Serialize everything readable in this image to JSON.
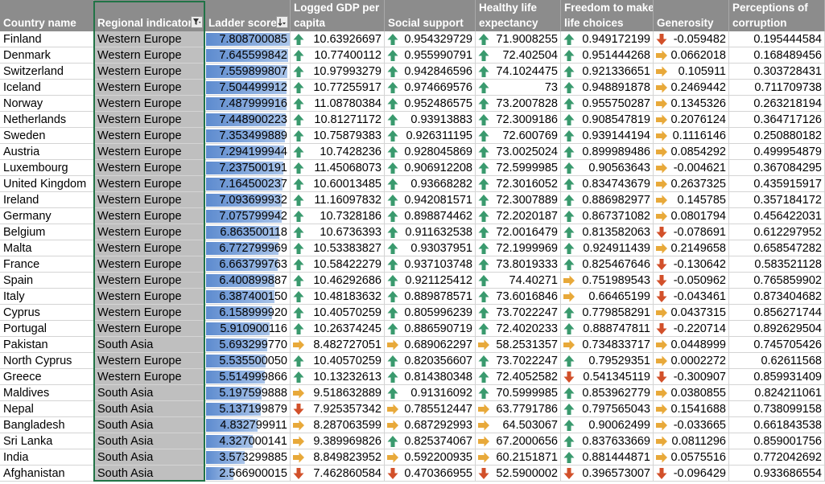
{
  "headers": {
    "country": "Country name",
    "region": "Regional indicator",
    "ladder": "Ladder score",
    "gdp": [
      "Logged GDP per",
      "capita"
    ],
    "social": "Social support",
    "life": [
      "Healthy life",
      "expectancy"
    ],
    "freedom": [
      "Freedom to make",
      "life choices"
    ],
    "generosity": "Generosity",
    "corruption": [
      "Perceptions of",
      "corruption"
    ]
  },
  "colors": {
    "header_bg": "#8c8c8c",
    "region_fill": "#bfbfbf",
    "databar": "#5d8bcf",
    "arrow_up": "#3a9a6e",
    "arrow_side": "#e8a93a",
    "arrow_down": "#d2502a",
    "selection": "#217346"
  },
  "icons": {
    "filter_active": "filter-icon",
    "sort_desc": "sort-descending-icon",
    "up": "arrow-up-icon",
    "side": "arrow-right-icon",
    "down": "arrow-down-icon"
  },
  "ladder_max": 7.8087,
  "rows": [
    {
      "country": "Finland",
      "region": "Western Europe",
      "ladder": "7.808700085",
      "gdp": "10.63926697",
      "gdp_i": "up",
      "social": "0.954329729",
      "social_i": "up",
      "life": "71.9008255",
      "life_i": "up",
      "freedom": "0.949172199",
      "freedom_i": "up",
      "gen": "-0.059482",
      "gen_i": "down",
      "corr": "0.195444584"
    },
    {
      "country": "Denmark",
      "region": "Western Europe",
      "ladder": "7.645599842",
      "gdp": "10.77400112",
      "gdp_i": "up",
      "social": "0.955990791",
      "social_i": "up",
      "life": "72.402504",
      "life_i": "up",
      "freedom": "0.951444268",
      "freedom_i": "up",
      "gen": "0.0662018",
      "gen_i": "side",
      "corr": "0.168489456"
    },
    {
      "country": "Switzerland",
      "region": "Western Europe",
      "ladder": "7.559899807",
      "gdp": "10.97993279",
      "gdp_i": "up",
      "social": "0.942846596",
      "social_i": "up",
      "life": "74.1024475",
      "life_i": "up",
      "freedom": "0.921336651",
      "freedom_i": "up",
      "gen": "0.105911",
      "gen_i": "side",
      "corr": "0.303728431"
    },
    {
      "country": "Iceland",
      "region": "Western Europe",
      "ladder": "7.504499912",
      "gdp": "10.77255917",
      "gdp_i": "up",
      "social": "0.974669576",
      "social_i": "up",
      "life": "73",
      "life_i": "up",
      "freedom": "0.948891878",
      "freedom_i": "up",
      "gen": "0.2469442",
      "gen_i": "side",
      "corr": "0.711709738"
    },
    {
      "country": "Norway",
      "region": "Western Europe",
      "ladder": "7.487999916",
      "gdp": "11.08780384",
      "gdp_i": "up",
      "social": "0.952486575",
      "social_i": "up",
      "life": "73.2007828",
      "life_i": "up",
      "freedom": "0.955750287",
      "freedom_i": "up",
      "gen": "0.1345326",
      "gen_i": "side",
      "corr": "0.263218194"
    },
    {
      "country": "Netherlands",
      "region": "Western Europe",
      "ladder": "7.448900223",
      "gdp": "10.81271172",
      "gdp_i": "up",
      "social": "0.93913883",
      "social_i": "up",
      "life": "72.3009186",
      "life_i": "up",
      "freedom": "0.908547819",
      "freedom_i": "up",
      "gen": "0.2076124",
      "gen_i": "side",
      "corr": "0.364717126"
    },
    {
      "country": "Sweden",
      "region": "Western Europe",
      "ladder": "7.353499889",
      "gdp": "10.75879383",
      "gdp_i": "up",
      "social": "0.926311195",
      "social_i": "up",
      "life": "72.600769",
      "life_i": "up",
      "freedom": "0.939144194",
      "freedom_i": "up",
      "gen": "0.1116146",
      "gen_i": "side",
      "corr": "0.250880182"
    },
    {
      "country": "Austria",
      "region": "Western Europe",
      "ladder": "7.294199944",
      "gdp": "10.7428236",
      "gdp_i": "up",
      "social": "0.928045869",
      "social_i": "up",
      "life": "73.0025024",
      "life_i": "up",
      "freedom": "0.899989486",
      "freedom_i": "up",
      "gen": "0.0854292",
      "gen_i": "side",
      "corr": "0.499954879"
    },
    {
      "country": "Luxembourg",
      "region": "Western Europe",
      "ladder": "7.237500191",
      "gdp": "11.45068073",
      "gdp_i": "up",
      "social": "0.906912208",
      "social_i": "up",
      "life": "72.5999985",
      "life_i": "up",
      "freedom": "0.90563643",
      "freedom_i": "up",
      "gen": "-0.004621",
      "gen_i": "side",
      "corr": "0.367084295"
    },
    {
      "country": "United Kingdom",
      "region": "Western Europe",
      "ladder": "7.164500237",
      "gdp": "10.60013485",
      "gdp_i": "up",
      "social": "0.93668282",
      "social_i": "up",
      "life": "72.3016052",
      "life_i": "up",
      "freedom": "0.834743679",
      "freedom_i": "up",
      "gen": "0.2637325",
      "gen_i": "side",
      "corr": "0.435915917"
    },
    {
      "country": "Ireland",
      "region": "Western Europe",
      "ladder": "7.093699932",
      "gdp": "11.16097832",
      "gdp_i": "up",
      "social": "0.942081571",
      "social_i": "up",
      "life": "72.3007889",
      "life_i": "up",
      "freedom": "0.886982977",
      "freedom_i": "up",
      "gen": "0.145785",
      "gen_i": "side",
      "corr": "0.357184172"
    },
    {
      "country": "Germany",
      "region": "Western Europe",
      "ladder": "7.075799942",
      "gdp": "10.7328186",
      "gdp_i": "up",
      "social": "0.898874462",
      "social_i": "up",
      "life": "72.2020187",
      "life_i": "up",
      "freedom": "0.867371082",
      "freedom_i": "up",
      "gen": "0.0801794",
      "gen_i": "side",
      "corr": "0.456422031"
    },
    {
      "country": "Belgium",
      "region": "Western Europe",
      "ladder": "6.863500118",
      "gdp": "10.6736393",
      "gdp_i": "up",
      "social": "0.911632538",
      "social_i": "up",
      "life": "72.0016479",
      "life_i": "up",
      "freedom": "0.813582063",
      "freedom_i": "up",
      "gen": "-0.078691",
      "gen_i": "down",
      "corr": "0.612297952"
    },
    {
      "country": "Malta",
      "region": "Western Europe",
      "ladder": "6.772799969",
      "gdp": "10.53383827",
      "gdp_i": "up",
      "social": "0.93037951",
      "social_i": "up",
      "life": "72.1999969",
      "life_i": "up",
      "freedom": "0.924911439",
      "freedom_i": "up",
      "gen": "0.2149658",
      "gen_i": "side",
      "corr": "0.658547282"
    },
    {
      "country": "France",
      "region": "Western Europe",
      "ladder": "6.663799763",
      "gdp": "10.58422279",
      "gdp_i": "up",
      "social": "0.937103748",
      "social_i": "up",
      "life": "73.8019333",
      "life_i": "up",
      "freedom": "0.825467646",
      "freedom_i": "up",
      "gen": "-0.130642",
      "gen_i": "down",
      "corr": "0.583521128"
    },
    {
      "country": "Spain",
      "region": "Western Europe",
      "ladder": "6.400899887",
      "gdp": "10.46292686",
      "gdp_i": "up",
      "social": "0.921125412",
      "social_i": "up",
      "life": "74.40271",
      "life_i": "up",
      "freedom": "0.751989543",
      "freedom_i": "side",
      "gen": "-0.050962",
      "gen_i": "down",
      "corr": "0.765859902"
    },
    {
      "country": "Italy",
      "region": "Western Europe",
      "ladder": "6.387400150",
      "gdp": "10.48183632",
      "gdp_i": "up",
      "social": "0.889878571",
      "social_i": "up",
      "life": "73.6016846",
      "life_i": "up",
      "freedom": "0.66465199",
      "freedom_i": "side",
      "gen": "-0.043461",
      "gen_i": "down",
      "corr": "0.873404682"
    },
    {
      "country": "Cyprus",
      "region": "Western Europe",
      "ladder": "6.158999920",
      "gdp": "10.40570259",
      "gdp_i": "up",
      "social": "0.805996239",
      "social_i": "up",
      "life": "73.7022247",
      "life_i": "up",
      "freedom": "0.779858291",
      "freedom_i": "up",
      "gen": "0.0437315",
      "gen_i": "side",
      "corr": "0.856271744"
    },
    {
      "country": "Portugal",
      "region": "Western Europe",
      "ladder": "5.910900116",
      "gdp": "10.26374245",
      "gdp_i": "up",
      "social": "0.886590719",
      "social_i": "up",
      "life": "72.4020233",
      "life_i": "up",
      "freedom": "0.888747811",
      "freedom_i": "up",
      "gen": "-0.220714",
      "gen_i": "down",
      "corr": "0.892629504"
    },
    {
      "country": "Pakistan",
      "region": "South Asia",
      "ladder": "5.693299770",
      "gdp": "8.482727051",
      "gdp_i": "side",
      "social": "0.689062297",
      "social_i": "side",
      "life": "58.2531357",
      "life_i": "side",
      "freedom": "0.734833717",
      "freedom_i": "side",
      "gen": "0.0448999",
      "gen_i": "side",
      "corr": "0.745705426"
    },
    {
      "country": "North Cyprus",
      "region": "Western Europe",
      "ladder": "5.535500050",
      "gdp": "10.40570259",
      "gdp_i": "up",
      "social": "0.820356607",
      "social_i": "up",
      "life": "73.7022247",
      "life_i": "up",
      "freedom": "0.79529351",
      "freedom_i": "up",
      "gen": "0.0002272",
      "gen_i": "side",
      "corr": "0.62611568"
    },
    {
      "country": "Greece",
      "region": "Western Europe",
      "ladder": "5.514999866",
      "gdp": "10.13232613",
      "gdp_i": "up",
      "social": "0.814380348",
      "social_i": "up",
      "life": "72.4052582",
      "life_i": "up",
      "freedom": "0.541345119",
      "freedom_i": "down",
      "gen": "-0.300907",
      "gen_i": "down",
      "corr": "0.859931409"
    },
    {
      "country": "Maldives",
      "region": "South Asia",
      "ladder": "5.197599888",
      "gdp": "9.518632889",
      "gdp_i": "side",
      "social": "0.91316092",
      "social_i": "up",
      "life": "70.5999985",
      "life_i": "up",
      "freedom": "0.853962779",
      "freedom_i": "up",
      "gen": "0.0380855",
      "gen_i": "side",
      "corr": "0.824211061"
    },
    {
      "country": "Nepal",
      "region": "South Asia",
      "ladder": "5.137199879",
      "gdp": "7.925357342",
      "gdp_i": "down",
      "social": "0.785512447",
      "social_i": "side",
      "life": "63.7791786",
      "life_i": "side",
      "freedom": "0.797565043",
      "freedom_i": "up",
      "gen": "0.1541688",
      "gen_i": "side",
      "corr": "0.738099158"
    },
    {
      "country": "Bangladesh",
      "region": "South Asia",
      "ladder": "4.832799911",
      "gdp": "8.287063599",
      "gdp_i": "side",
      "social": "0.687292993",
      "social_i": "side",
      "life": "64.503067",
      "life_i": "side",
      "freedom": "0.90062499",
      "freedom_i": "up",
      "gen": "-0.033665",
      "gen_i": "side",
      "corr": "0.661843538"
    },
    {
      "country": "Sri Lanka",
      "region": "South Asia",
      "ladder": "4.327000141",
      "gdp": "9.389969826",
      "gdp_i": "side",
      "social": "0.825374067",
      "social_i": "up",
      "life": "67.2000656",
      "life_i": "side",
      "freedom": "0.837633669",
      "freedom_i": "up",
      "gen": "0.0811296",
      "gen_i": "side",
      "corr": "0.859001756"
    },
    {
      "country": "India",
      "region": "South Asia",
      "ladder": "3.573299885",
      "gdp": "8.849823952",
      "gdp_i": "side",
      "social": "0.592200935",
      "social_i": "side",
      "life": "60.2151871",
      "life_i": "side",
      "freedom": "0.881444871",
      "freedom_i": "up",
      "gen": "0.0575516",
      "gen_i": "side",
      "corr": "0.772042692"
    },
    {
      "country": "Afghanistan",
      "region": "South Asia",
      "ladder": "2.566900015",
      "gdp": "7.462860584",
      "gdp_i": "down",
      "social": "0.470366955",
      "social_i": "down",
      "life": "52.5900002",
      "life_i": "down",
      "freedom": "0.396573007",
      "freedom_i": "down",
      "gen": "-0.096429",
      "gen_i": "down",
      "corr": "0.933686554"
    }
  ]
}
